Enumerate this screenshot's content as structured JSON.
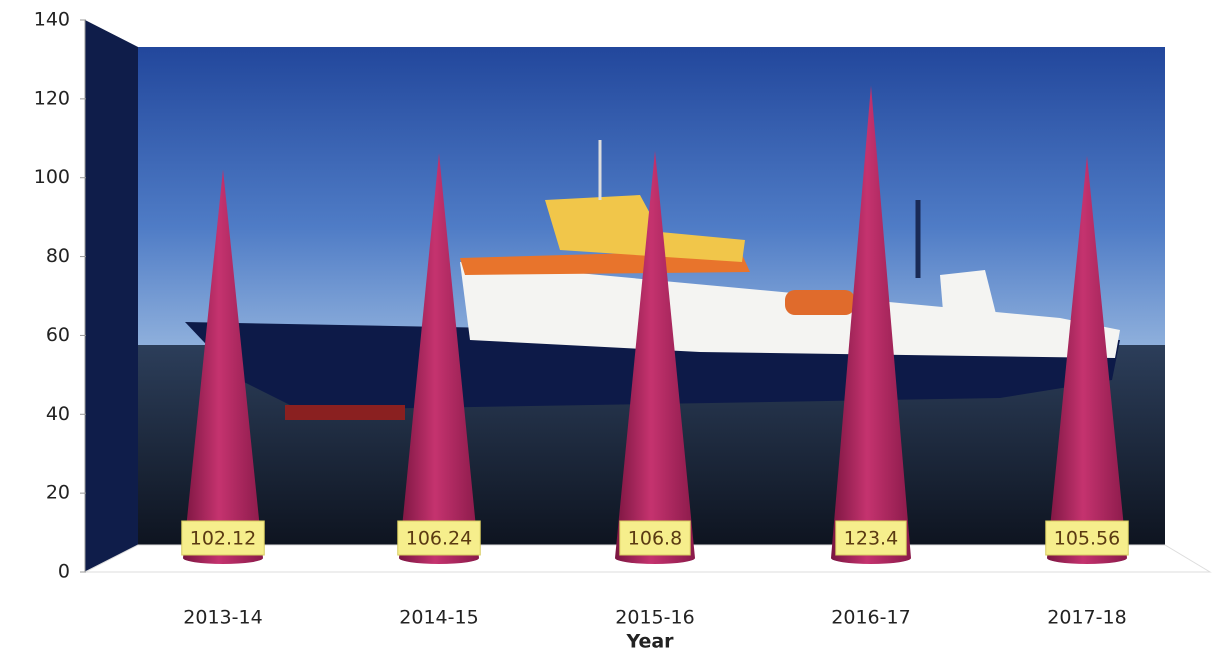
{
  "chart_data": {
    "type": "cone",
    "categories": [
      "2013-14",
      "2014-15",
      "2015-16",
      "2016-17",
      "2017-18"
    ],
    "values": [
      102.12,
      106.24,
      106.8,
      123.4,
      105.56
    ],
    "color": "#b02a60",
    "x_label": "Year",
    "ylim": [
      0,
      140
    ],
    "yticks": [
      0,
      20,
      40,
      60,
      80,
      100,
      120,
      140
    ]
  }
}
